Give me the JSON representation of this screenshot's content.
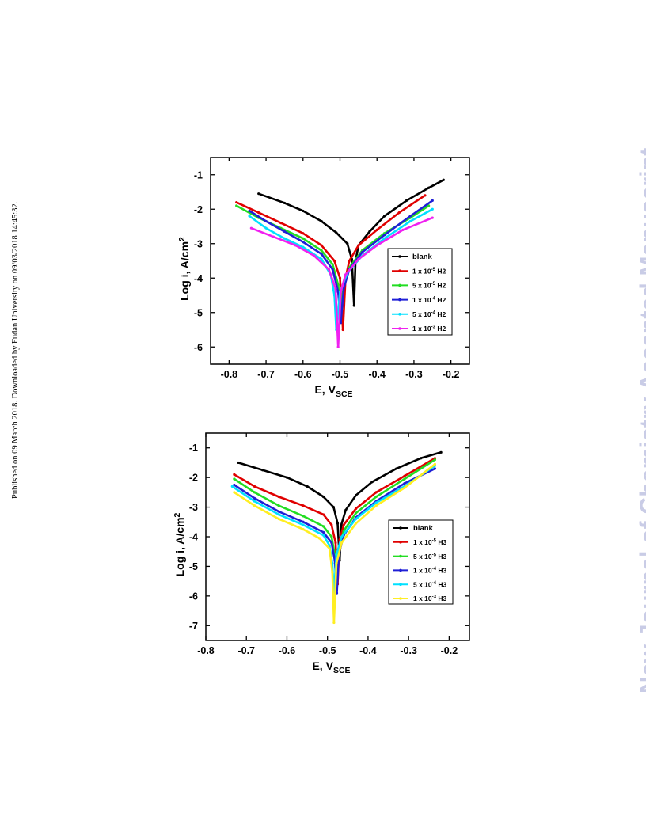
{
  "side_note": "Published on 09 March 2018. Downloaded by Fudan University on 09/03/2018 14:45:32.",
  "watermark": "New Journal of Chemistry Accepted Manuscript",
  "chart_data": [
    {
      "type": "line",
      "title": "",
      "xlabel": "E, V",
      "xlabel_sub": "SCE",
      "ylabel": "Log i, A/cm",
      "ylabel_sup": "2",
      "xlim": [
        -0.85,
        -0.15
      ],
      "ylim": [
        -6.5,
        -0.5
      ],
      "xticks": [
        -0.8,
        -0.7,
        -0.6,
        -0.5,
        -0.4,
        -0.3,
        -0.2
      ],
      "yticks": [
        -1,
        -2,
        -3,
        -4,
        -5,
        -6
      ],
      "xtick_labels": [
        "-0.8",
        "-0.7",
        "-0.6",
        "-0.5",
        "-0.4",
        "-0.3",
        "-0.2"
      ],
      "ytick_labels": [
        "-1",
        "-2",
        "-3",
        "-4",
        "-5",
        "-6"
      ],
      "legend_position": "right",
      "series": [
        {
          "name": "blank",
          "color": "#000000",
          "points": [
            [
              -0.72,
              -1.55
            ],
            [
              -0.65,
              -1.82
            ],
            [
              -0.6,
              -2.05
            ],
            [
              -0.55,
              -2.35
            ],
            [
              -0.51,
              -2.68
            ],
            [
              -0.48,
              -3.0
            ],
            [
              -0.468,
              -3.45
            ],
            [
              -0.462,
              -4.8
            ],
            [
              -0.458,
              -3.5
            ],
            [
              -0.45,
              -3.05
            ],
            [
              -0.42,
              -2.65
            ],
            [
              -0.38,
              -2.2
            ],
            [
              -0.32,
              -1.75
            ],
            [
              -0.26,
              -1.38
            ],
            [
              -0.22,
              -1.15
            ]
          ]
        },
        {
          "name": "1 x 10-5 H2",
          "label_main": "1 x 10",
          "label_exp": "-5",
          "label_suffix": " H2",
          "color": "#e00000",
          "points": [
            [
              -0.78,
              -1.8
            ],
            [
              -0.72,
              -2.1
            ],
            [
              -0.66,
              -2.4
            ],
            [
              -0.6,
              -2.7
            ],
            [
              -0.55,
              -3.05
            ],
            [
              -0.515,
              -3.5
            ],
            [
              -0.5,
              -4.0
            ],
            [
              -0.492,
              -5.5
            ],
            [
              -0.485,
              -4.0
            ],
            [
              -0.475,
              -3.5
            ],
            [
              -0.45,
              -3.05
            ],
            [
              -0.4,
              -2.6
            ],
            [
              -0.34,
              -2.1
            ],
            [
              -0.27,
              -1.6
            ]
          ]
        },
        {
          "name": "5 x 10-5 H2",
          "label_main": "5 x 10",
          "label_exp": "-5",
          "label_suffix": " H2",
          "color": "#22dd22",
          "points": [
            [
              -0.78,
              -1.9
            ],
            [
              -0.72,
              -2.25
            ],
            [
              -0.66,
              -2.55
            ],
            [
              -0.6,
              -2.85
            ],
            [
              -0.55,
              -3.2
            ],
            [
              -0.52,
              -3.6
            ],
            [
              -0.505,
              -4.2
            ],
            [
              -0.498,
              -5.0
            ],
            [
              -0.49,
              -4.2
            ],
            [
              -0.475,
              -3.7
            ],
            [
              -0.44,
              -3.2
            ],
            [
              -0.38,
              -2.7
            ],
            [
              -0.31,
              -2.25
            ],
            [
              -0.26,
              -1.9
            ]
          ]
        },
        {
          "name": "1 x 10-4 H2",
          "label_main": "1 x 10",
          "label_exp": "-4",
          "label_suffix": " H2",
          "color": "#1f1fd6",
          "points": [
            [
              -0.745,
              -2.05
            ],
            [
              -0.7,
              -2.35
            ],
            [
              -0.65,
              -2.65
            ],
            [
              -0.6,
              -2.95
            ],
            [
              -0.55,
              -3.3
            ],
            [
              -0.52,
              -3.75
            ],
            [
              -0.505,
              -4.4
            ],
            [
              -0.498,
              -5.3
            ],
            [
              -0.49,
              -4.3
            ],
            [
              -0.475,
              -3.75
            ],
            [
              -0.44,
              -3.25
            ],
            [
              -0.38,
              -2.75
            ],
            [
              -0.31,
              -2.2
            ],
            [
              -0.25,
              -1.75
            ]
          ]
        },
        {
          "name": "5 x 10-4 H2",
          "label_main": "5 x 10",
          "label_exp": "-4",
          "label_suffix": " H2",
          "color": "#00e0ff",
          "points": [
            [
              -0.745,
              -2.2
            ],
            [
              -0.7,
              -2.55
            ],
            [
              -0.65,
              -2.85
            ],
            [
              -0.6,
              -3.1
            ],
            [
              -0.55,
              -3.45
            ],
            [
              -0.525,
              -3.9
            ],
            [
              -0.515,
              -4.5
            ],
            [
              -0.51,
              -5.5
            ],
            [
              -0.5,
              -4.4
            ],
            [
              -0.48,
              -3.85
            ],
            [
              -0.44,
              -3.35
            ],
            [
              -0.38,
              -2.85
            ],
            [
              -0.31,
              -2.35
            ],
            [
              -0.25,
              -2.0
            ]
          ]
        },
        {
          "name": "1 x 10-3 H2",
          "label_main": "1 x 10",
          "label_exp": "-3",
          "label_suffix": " H2",
          "color": "#f020f0",
          "points": [
            [
              -0.74,
              -2.55
            ],
            [
              -0.68,
              -2.8
            ],
            [
              -0.62,
              -3.05
            ],
            [
              -0.57,
              -3.35
            ],
            [
              -0.53,
              -3.75
            ],
            [
              -0.512,
              -4.3
            ],
            [
              -0.505,
              -6.0
            ],
            [
              -0.498,
              -4.4
            ],
            [
              -0.485,
              -3.9
            ],
            [
              -0.45,
              -3.45
            ],
            [
              -0.4,
              -3.05
            ],
            [
              -0.33,
              -2.6
            ],
            [
              -0.25,
              -2.25
            ]
          ]
        }
      ]
    },
    {
      "type": "line",
      "title": "",
      "xlabel": "E, V",
      "xlabel_sub": "SCE",
      "ylabel": "Log i, A/cm",
      "ylabel_sup": "2",
      "xlim": [
        -0.8,
        -0.15
      ],
      "ylim": [
        -7.5,
        -0.5
      ],
      "xticks": [
        -0.8,
        -0.7,
        -0.6,
        -0.5,
        -0.4,
        -0.3,
        -0.2
      ],
      "yticks": [
        -1,
        -2,
        -3,
        -4,
        -5,
        -6,
        -7
      ],
      "xtick_labels": [
        "-0.8",
        "-0.7",
        "-0.6",
        "-0.5",
        "-0.4",
        "-0.3",
        "-0.2"
      ],
      "ytick_labels": [
        "-1",
        "-2",
        "-3",
        "-4",
        "-5",
        "-6",
        "-7"
      ],
      "legend_position": "right",
      "series": [
        {
          "name": "blank",
          "color": "#000000",
          "points": [
            [
              -0.72,
              -1.5
            ],
            [
              -0.66,
              -1.75
            ],
            [
              -0.6,
              -2.0
            ],
            [
              -0.55,
              -2.3
            ],
            [
              -0.51,
              -2.65
            ],
            [
              -0.485,
              -3.0
            ],
            [
              -0.475,
              -3.55
            ],
            [
              -0.47,
              -4.8
            ],
            [
              -0.466,
              -3.6
            ],
            [
              -0.455,
              -3.1
            ],
            [
              -0.43,
              -2.6
            ],
            [
              -0.39,
              -2.15
            ],
            [
              -0.33,
              -1.7
            ],
            [
              -0.27,
              -1.35
            ],
            [
              -0.22,
              -1.15
            ]
          ]
        },
        {
          "name": "1 x 10-5 H3",
          "label_main": "1 x 10",
          "label_exp": "-5",
          "label_suffix": " H3",
          "color": "#e00000",
          "points": [
            [
              -0.73,
              -1.9
            ],
            [
              -0.68,
              -2.3
            ],
            [
              -0.62,
              -2.65
            ],
            [
              -0.56,
              -2.95
            ],
            [
              -0.51,
              -3.25
            ],
            [
              -0.49,
              -3.6
            ],
            [
              -0.48,
              -4.2
            ],
            [
              -0.475,
              -5.6
            ],
            [
              -0.47,
              -4.1
            ],
            [
              -0.46,
              -3.6
            ],
            [
              -0.43,
              -3.05
            ],
            [
              -0.38,
              -2.5
            ],
            [
              -0.31,
              -1.95
            ],
            [
              -0.235,
              -1.35
            ]
          ]
        },
        {
          "name": "5 x 10-5 H3",
          "label_main": "5 x 10",
          "label_exp": "-5",
          "label_suffix": " H3",
          "color": "#22dd22",
          "points": [
            [
              -0.73,
              -2.05
            ],
            [
              -0.68,
              -2.5
            ],
            [
              -0.62,
              -2.95
            ],
            [
              -0.56,
              -3.3
            ],
            [
              -0.51,
              -3.65
            ],
            [
              -0.49,
              -4.0
            ],
            [
              -0.482,
              -4.6
            ],
            [
              -0.478,
              -5.7
            ],
            [
              -0.472,
              -4.4
            ],
            [
              -0.46,
              -3.8
            ],
            [
              -0.43,
              -3.2
            ],
            [
              -0.38,
              -2.65
            ],
            [
              -0.31,
              -2.05
            ],
            [
              -0.235,
              -1.4
            ]
          ]
        },
        {
          "name": "1 x 10-4 H3",
          "label_main": "1 x 10",
          "label_exp": "-4",
          "label_suffix": " H3",
          "color": "#1f1fd6",
          "points": [
            [
              -0.73,
              -2.25
            ],
            [
              -0.68,
              -2.7
            ],
            [
              -0.62,
              -3.15
            ],
            [
              -0.56,
              -3.5
            ],
            [
              -0.51,
              -3.85
            ],
            [
              -0.49,
              -4.2
            ],
            [
              -0.482,
              -4.8
            ],
            [
              -0.477,
              -5.9
            ],
            [
              -0.472,
              -4.6
            ],
            [
              -0.46,
              -3.95
            ],
            [
              -0.43,
              -3.35
            ],
            [
              -0.38,
              -2.8
            ],
            [
              -0.31,
              -2.2
            ],
            [
              -0.235,
              -1.7
            ]
          ]
        },
        {
          "name": "5 x 10-4 H3",
          "label_main": "5 x 10",
          "label_exp": "-4",
          "label_suffix": " H3",
          "color": "#00e0ff",
          "points": [
            [
              -0.735,
              -2.3
            ],
            [
              -0.68,
              -2.8
            ],
            [
              -0.62,
              -3.25
            ],
            [
              -0.56,
              -3.6
            ],
            [
              -0.51,
              -3.95
            ],
            [
              -0.495,
              -4.3
            ],
            [
              -0.488,
              -4.9
            ],
            [
              -0.484,
              -5.9
            ],
            [
              -0.478,
              -4.6
            ],
            [
              -0.465,
              -4.0
            ],
            [
              -0.43,
              -3.4
            ],
            [
              -0.38,
              -2.85
            ],
            [
              -0.31,
              -2.3
            ],
            [
              -0.235,
              -1.6
            ]
          ]
        },
        {
          "name": "1 x 10-3 H3",
          "label_main": "1 x 10",
          "label_exp": "-3",
          "label_suffix": " H3",
          "color": "#ffee22",
          "points": [
            [
              -0.73,
              -2.5
            ],
            [
              -0.68,
              -2.95
            ],
            [
              -0.62,
              -3.4
            ],
            [
              -0.56,
              -3.75
            ],
            [
              -0.52,
              -4.05
            ],
            [
              -0.495,
              -4.4
            ],
            [
              -0.488,
              -5.2
            ],
            [
              -0.484,
              -6.9
            ],
            [
              -0.478,
              -4.9
            ],
            [
              -0.465,
              -4.2
            ],
            [
              -0.43,
              -3.55
            ],
            [
              -0.38,
              -2.95
            ],
            [
              -0.31,
              -2.35
            ],
            [
              -0.235,
              -1.55
            ]
          ]
        }
      ]
    }
  ]
}
